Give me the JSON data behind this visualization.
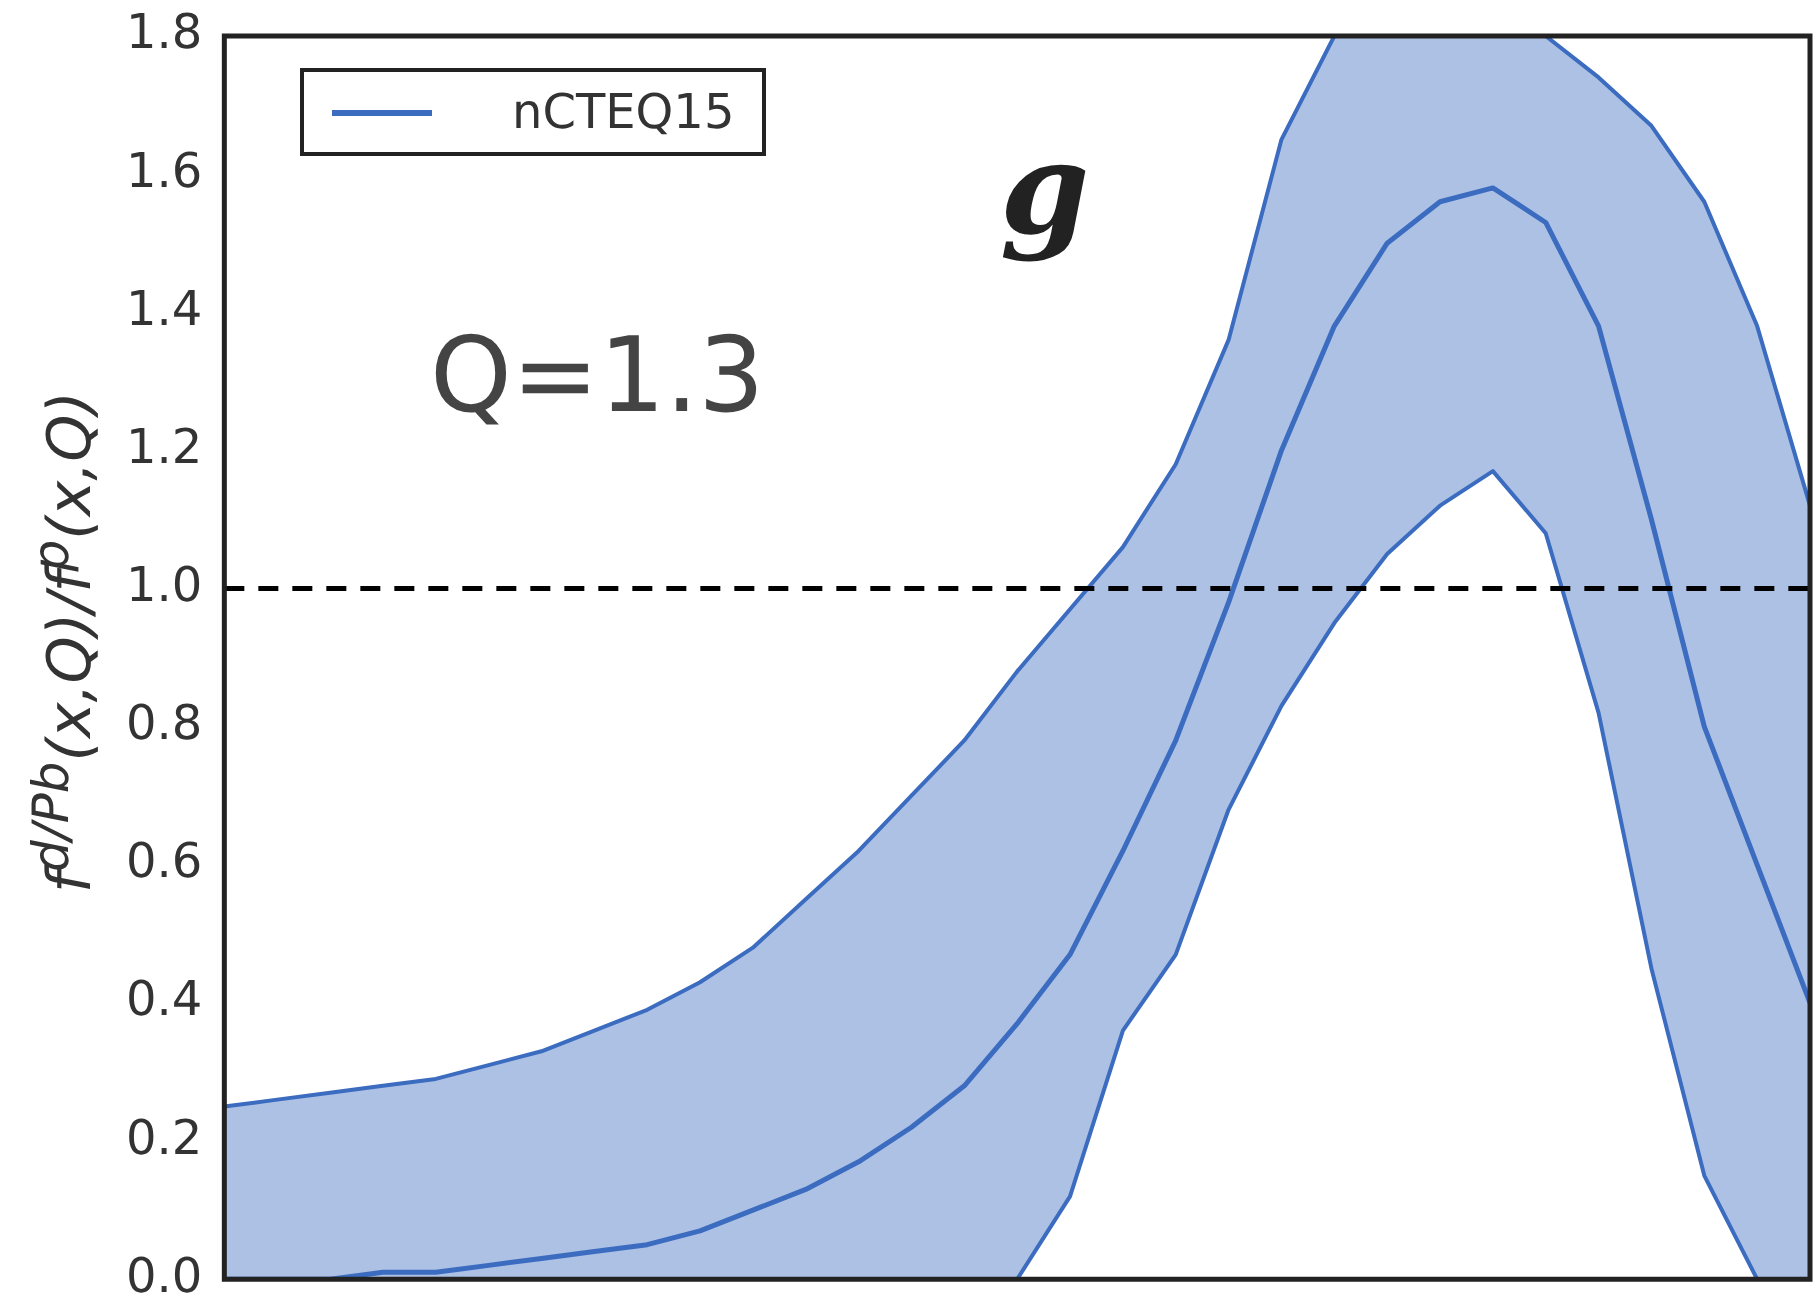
{
  "chart_data": {
    "type": "line",
    "ylabel": "f$^{d/Pb}$(x,Q)/f$^{p}$(x,Q)",
    "categories": [
      null,
      null,
      null,
      null,
      null,
      null,
      null,
      null,
      null,
      null,
      null,
      null,
      null,
      null,
      null,
      null,
      null,
      null,
      null,
      null,
      null,
      null,
      null,
      null,
      null,
      null,
      null,
      null,
      null,
      null,
      null
    ],
    "series": [
      {
        "name": "nCTEQ15",
        "color": "#3b6cc0",
        "values": [
          0.0,
          0.0,
          0.0,
          0.01,
          0.01,
          0.02,
          0.03,
          0.04,
          0.05,
          0.07,
          0.1,
          0.13,
          0.17,
          0.22,
          0.28,
          0.37,
          0.47,
          0.62,
          0.78,
          0.98,
          1.2,
          1.38,
          1.5,
          1.56,
          1.58,
          1.53,
          1.38,
          1.1,
          0.8,
          0.6,
          0.4
        ],
        "lower": [
          0.0,
          0.0,
          0.0,
          0.0,
          0.0,
          0.0,
          0.0,
          0.0,
          0.0,
          0.0,
          0.0,
          0.0,
          0.0,
          0.0,
          0.0,
          0.0,
          0.12,
          0.36,
          0.47,
          0.68,
          0.83,
          0.95,
          1.05,
          1.12,
          1.17,
          1.08,
          0.82,
          0.45,
          0.15,
          0.0,
          0.0
        ],
        "upper": [
          0.25,
          0.26,
          0.27,
          0.28,
          0.29,
          0.31,
          0.33,
          0.36,
          0.39,
          0.43,
          0.48,
          0.55,
          0.62,
          0.7,
          0.78,
          0.88,
          0.97,
          1.06,
          1.18,
          1.36,
          1.65,
          1.8,
          1.8,
          1.8,
          1.8,
          1.8,
          1.74,
          1.67,
          1.56,
          1.38,
          1.12
        ]
      },
      {
        "color": "#3b6cc0",
        "values": [
          0.25,
          0.26,
          0.27,
          0.28,
          0.29,
          0.31,
          0.33,
          0.36,
          0.39,
          0.43,
          0.48,
          0.55,
          0.62,
          0.7,
          0.78,
          0.88,
          0.97,
          1.06,
          1.18,
          1.36,
          1.65,
          1.8,
          1.8,
          1.8,
          1.8,
          1.8,
          1.74,
          1.67,
          1.56,
          1.38,
          1.12
        ]
      },
      {
        "color": "#3b6cc0",
        "values": [
          0.0,
          0.0,
          0.0,
          0.0,
          0.0,
          0.0,
          0.0,
          0.0,
          0.0,
          0.0,
          0.0,
          0.0,
          0.0,
          0.0,
          0.0,
          0.0,
          0.12,
          0.36,
          0.47,
          0.68,
          0.83,
          0.95,
          1.05,
          1.12,
          1.17,
          1.08,
          0.82,
          0.45,
          0.15,
          0.0,
          0.0
        ]
      }
    ],
    "ylim": [
      0,
      1.8
    ],
    "yticks": [
      {
        "value": 0,
        "label": "0.0"
      },
      0.2,
      0.4,
      0.6,
      0.8,
      {
        "value": 1,
        "label": "1.0"
      },
      1.2,
      1.4,
      1.6,
      1.8
    ],
    "ref_lines": [
      {
        "axis": "y",
        "value": 1,
        "color": "#000000",
        "line_style": "dashed"
      }
    ],
    "annotations": [
      "g",
      "Q=1.3"
    ],
    "legend": "top left",
    "grid": false,
    "tick_labels": "y",
    "line_style": "solid",
    "marker": "none"
  }
}
